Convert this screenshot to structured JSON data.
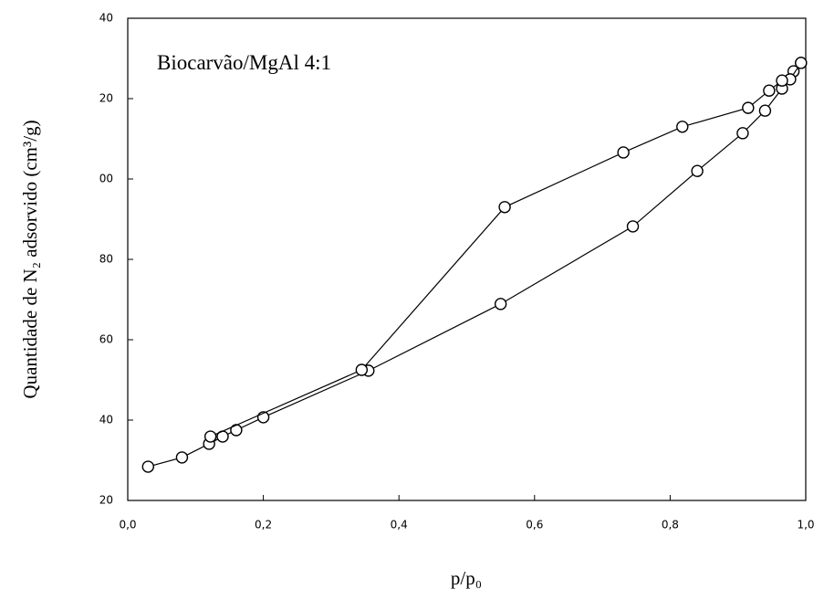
{
  "chart_data": {
    "type": "line",
    "annotation": "Biocarvão/MgAl 4:1",
    "x_label": "p/p₀",
    "y_label": "Quantidade de N₂ adsorvido (cm³/g)",
    "xlim": [
      0,
      1
    ],
    "ylim": [
      20,
      140
    ],
    "xticks": [
      {
        "value": 0,
        "label": "0,0"
      },
      {
        "value": 0.2,
        "label": "0,2"
      },
      {
        "value": 0.4,
        "label": "0,4"
      },
      {
        "value": 0.6,
        "label": "0,6"
      },
      {
        "value": 0.8,
        "label": "0,8"
      },
      {
        "value": 1,
        "label": "1,0"
      }
    ],
    "yticks": [
      20,
      40,
      60,
      80,
      {
        "value": 100,
        "label": "00"
      },
      {
        "value": 120,
        "label": "20"
      },
      {
        "value": 140,
        "label": "40"
      }
    ],
    "series": [
      {
        "color": "#000000",
        "x": [
          0.03,
          0.08,
          0.12,
          0.14,
          0.16,
          0.2,
          0.355,
          0.55,
          0.745,
          0.84,
          0.907,
          0.94,
          0.965,
          0.982,
          0.993
        ],
        "values": [
          28.4,
          30.7,
          34.1,
          35.9,
          37.5,
          40.7,
          52.3,
          68.9,
          88.2,
          102.0,
          111.4,
          117.0,
          122.5,
          126.8,
          128.9
        ]
      },
      {
        "color": "#000000",
        "x": [
          0.993,
          0.977,
          0.965,
          0.946,
          0.915,
          0.818,
          0.731,
          0.556,
          0.345,
          0.122
        ],
        "values": [
          128.9,
          124.8,
          124.5,
          122.0,
          117.7,
          113.0,
          106.6,
          93.0,
          52.5,
          35.9
        ]
      }
    ]
  }
}
